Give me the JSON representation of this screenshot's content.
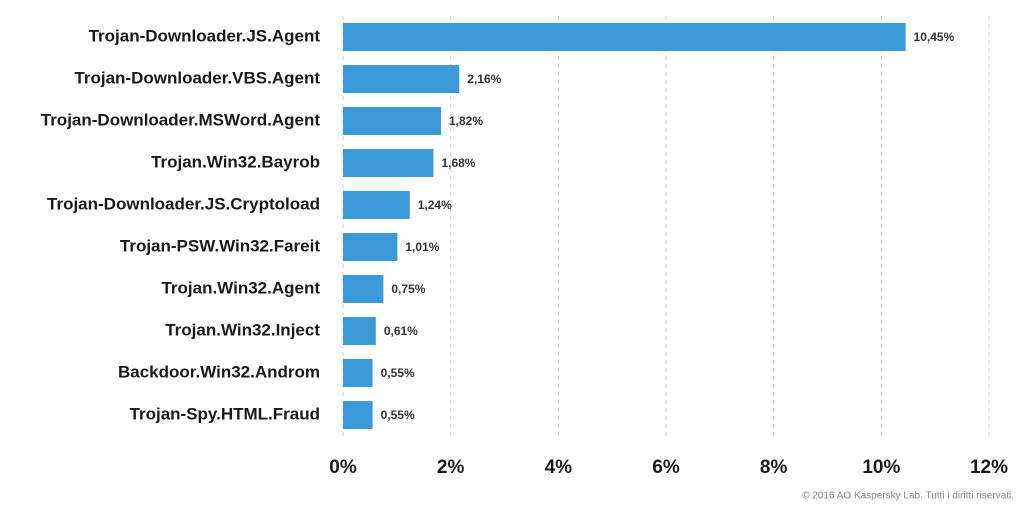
{
  "chart_data": {
    "type": "bar",
    "orientation": "horizontal",
    "categories": [
      "Trojan-Downloader.JS.Agent",
      "Trojan-Downloader.VBS.Agent",
      "Trojan-Downloader.MSWord.Agent",
      "Trojan.Win32.Bayrob",
      "Trojan-Downloader.JS.Cryptoload",
      "Trojan-PSW.Win32.Fareit",
      "Trojan.Win32.Agent",
      "Trojan.Win32.Inject",
      "Backdoor.Win32.Androm",
      "Trojan-Spy.HTML.Fraud"
    ],
    "values": [
      10.45,
      2.16,
      1.82,
      1.68,
      1.24,
      1.01,
      0.75,
      0.61,
      0.55,
      0.55
    ],
    "value_labels": [
      "10,45%",
      "2,16%",
      "1,82%",
      "1,68%",
      "1,24%",
      "1,01%",
      "0,75%",
      "0,61%",
      "0,55%",
      "0,55%"
    ],
    "color": "#3d9ad9",
    "xlim": [
      0,
      12
    ],
    "xticks": [
      {
        "value": 0,
        "label": "0%"
      },
      {
        "value": 2,
        "label": "2%"
      },
      {
        "value": 4,
        "label": "4%"
      },
      {
        "value": 6,
        "label": "6%"
      },
      {
        "value": 8,
        "label": "8%"
      },
      {
        "value": 10,
        "label": "10%"
      },
      {
        "value": 12,
        "label": "12%"
      }
    ],
    "grid": true,
    "copyright": "© 2016 AO Kaspersky Lab. Tutti i diritti riservati."
  }
}
